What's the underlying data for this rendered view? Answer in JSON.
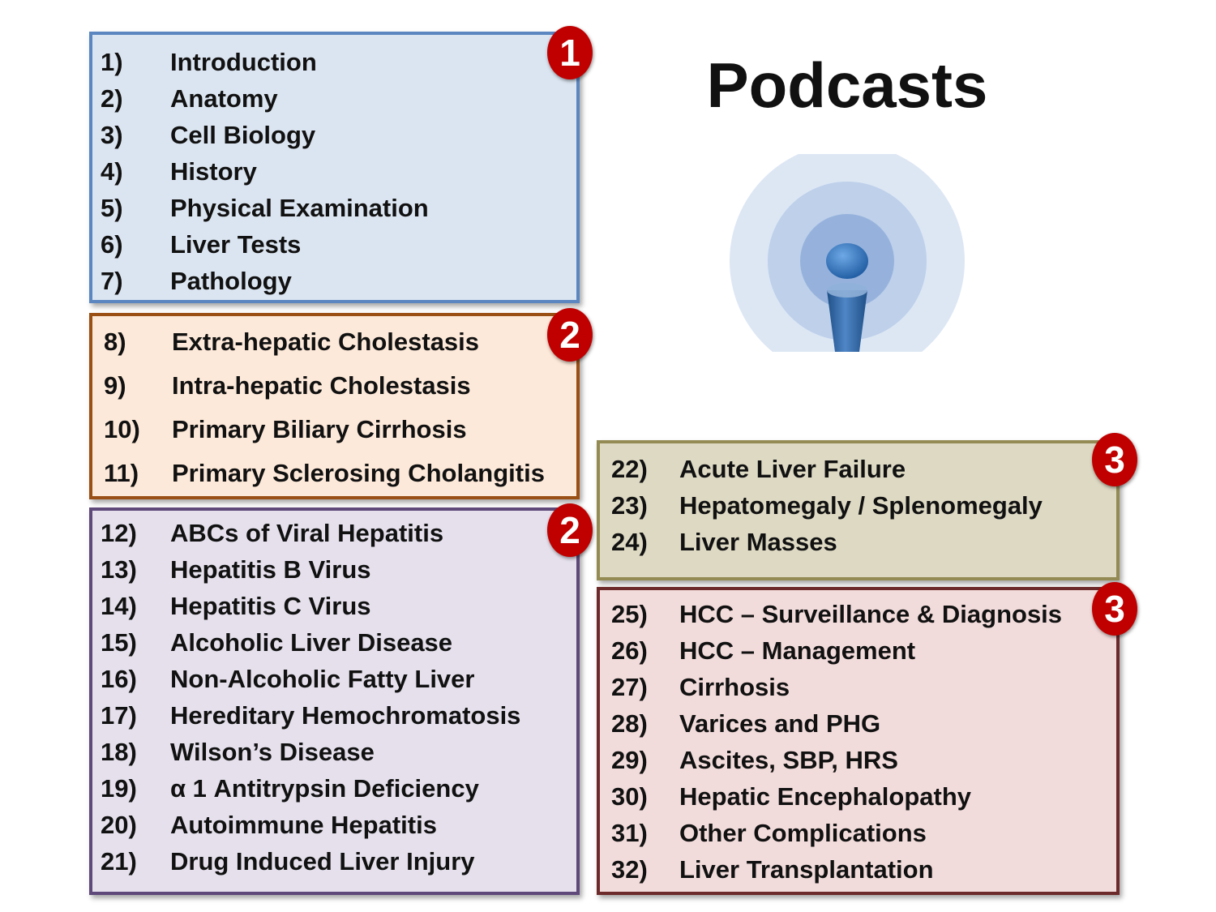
{
  "title": "Podcasts",
  "icon": "podcast-broadcast-icon",
  "colors": {
    "section1_border": "#5b86c0",
    "section1_fill": "#dbe5f1",
    "section2a_border": "#9a4f14",
    "section2a_fill": "#fde9d9",
    "section2b_border": "#5f497a",
    "section2b_fill": "#e5e0ec",
    "section3a_border": "#948a54",
    "section3a_fill": "#ddd9c3",
    "section3b_border": "#6d2a2a",
    "section3b_fill": "#f2dcdb",
    "badge": "#c00000"
  },
  "sections": [
    {
      "badge": "1",
      "items": [
        {
          "num": "1)",
          "label": "Introduction"
        },
        {
          "num": "2)",
          "label": "Anatomy"
        },
        {
          "num": "3)",
          "label": "Cell Biology"
        },
        {
          "num": "4)",
          "label": "History"
        },
        {
          "num": "5)",
          "label": "Physical Examination"
        },
        {
          "num": "6)",
          "label": "Liver Tests"
        },
        {
          "num": "7)",
          "label": "Pathology"
        }
      ]
    },
    {
      "badge": "2",
      "items": [
        {
          "num": "8)",
          "label": "Extra-hepatic Cholestasis"
        },
        {
          "num": "9)",
          "label": "Intra-hepatic Cholestasis"
        },
        {
          "num": "10)",
          "label": "Primary Biliary Cirrhosis"
        },
        {
          "num": "11)",
          "label": "Primary Sclerosing Cholangitis"
        }
      ]
    },
    {
      "badge": "2",
      "items": [
        {
          "num": "12)",
          "label": "ABCs of Viral Hepatitis"
        },
        {
          "num": "13)",
          "label": "Hepatitis B Virus"
        },
        {
          "num": "14)",
          "label": "Hepatitis C Virus"
        },
        {
          "num": "15)",
          "label": "Alcoholic Liver Disease"
        },
        {
          "num": "16)",
          "label": "Non-Alcoholic Fatty Liver"
        },
        {
          "num": "17)",
          "label": "Hereditary Hemochromatosis"
        },
        {
          "num": "18)",
          "label": "Wilson’s Disease"
        },
        {
          "num": "19)",
          "label": "α 1 Antitrypsin Deficiency"
        },
        {
          "num": "20)",
          "label": "Autoimmune Hepatitis"
        },
        {
          "num": "21)",
          "label": "Drug Induced Liver Injury"
        }
      ]
    },
    {
      "badge": "3",
      "items": [
        {
          "num": "22)",
          "label": "Acute Liver Failure"
        },
        {
          "num": "23)",
          "label": "Hepatomegaly / Splenomegaly"
        },
        {
          "num": "24)",
          "label": "Liver Masses"
        }
      ]
    },
    {
      "badge": "3",
      "items": [
        {
          "num": "25)",
          "label": "HCC – Surveillance & Diagnosis"
        },
        {
          "num": "26)",
          "label": "HCC – Management"
        },
        {
          "num": "27)",
          "label": "Cirrhosis"
        },
        {
          "num": "28)",
          "label": "Varices and PHG"
        },
        {
          "num": "29)",
          "label": "Ascites, SBP, HRS"
        },
        {
          "num": "30)",
          "label": "Hepatic Encephalopathy"
        },
        {
          "num": "31)",
          "label": "Other Complications"
        },
        {
          "num": "32)",
          "label": "Liver Transplantation"
        }
      ]
    }
  ]
}
